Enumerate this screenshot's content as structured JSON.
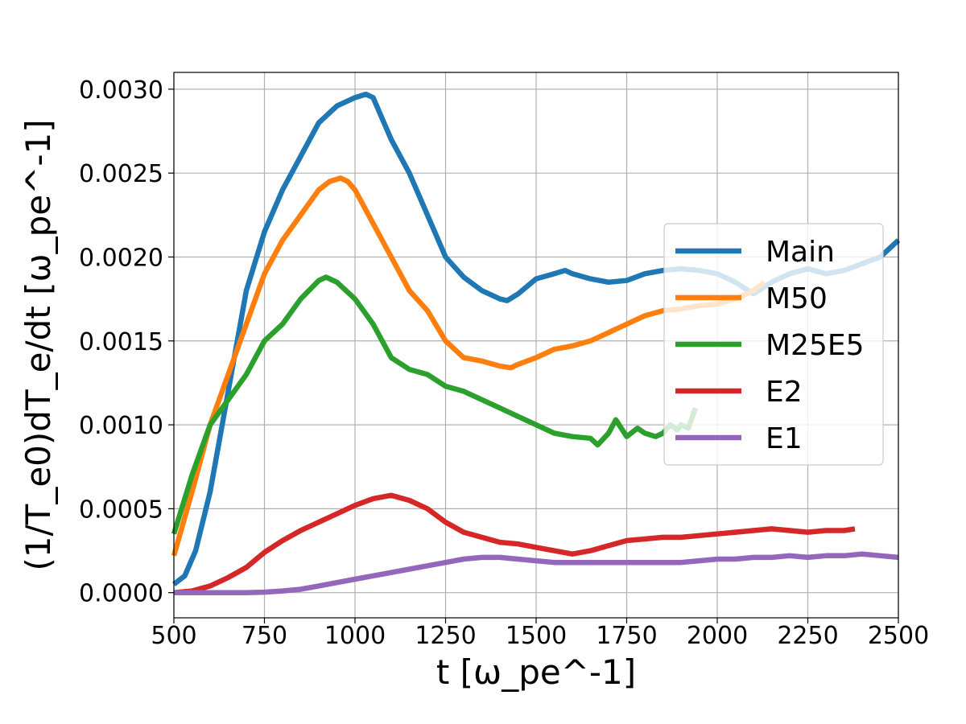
{
  "chart_data": {
    "type": "line",
    "title": "",
    "xlabel": "t   [ω_pe^-1]",
    "ylabel": "(1/T_e0)dT_e/dt   [ω_pe^-1]",
    "xlim": [
      500,
      2500
    ],
    "ylim": [
      -0.00015,
      0.0031
    ],
    "xticks": [
      500,
      750,
      1000,
      1250,
      1500,
      1750,
      2000,
      2250,
      2500
    ],
    "xtick_labels": [
      "500",
      "750",
      "1000",
      "1250",
      "1500",
      "1750",
      "2000",
      "2250",
      "2500"
    ],
    "yticks": [
      0,
      0.0005,
      0.001,
      0.0015,
      0.002,
      0.0025,
      0.003
    ],
    "ytick_labels": [
      "0.0000",
      "0.0005",
      "0.0010",
      "0.0015",
      "0.0020",
      "0.0025",
      "0.0030"
    ],
    "grid": true,
    "legend_position": "center-right",
    "series": [
      {
        "name": "Main",
        "color": "#1f77b4",
        "x": [
          500,
          530,
          560,
          600,
          650,
          700,
          750,
          800,
          850,
          900,
          950,
          1000,
          1030,
          1050,
          1080,
          1100,
          1150,
          1200,
          1250,
          1300,
          1350,
          1400,
          1420,
          1450,
          1500,
          1550,
          1580,
          1600,
          1650,
          1700,
          1750,
          1800,
          1850,
          1900,
          1950,
          2000,
          2050,
          2100,
          2150,
          2200,
          2250,
          2300,
          2350,
          2400,
          2450,
          2500
        ],
        "y": [
          5e-05,
          0.0001,
          0.00025,
          0.0006,
          0.0012,
          0.0018,
          0.00215,
          0.0024,
          0.0026,
          0.0028,
          0.0029,
          0.00295,
          0.00297,
          0.00295,
          0.0028,
          0.0027,
          0.0025,
          0.00225,
          0.002,
          0.00188,
          0.0018,
          0.00175,
          0.00174,
          0.00178,
          0.00187,
          0.0019,
          0.00192,
          0.0019,
          0.00187,
          0.00185,
          0.00186,
          0.0019,
          0.00192,
          0.00193,
          0.00192,
          0.0019,
          0.00185,
          0.00178,
          0.00185,
          0.0019,
          0.00193,
          0.0019,
          0.00192,
          0.00196,
          0.002,
          0.0021
        ]
      },
      {
        "name": "M50",
        "color": "#ff7f0e",
        "x": [
          500,
          550,
          600,
          650,
          700,
          750,
          800,
          850,
          900,
          930,
          960,
          980,
          1000,
          1050,
          1100,
          1150,
          1200,
          1250,
          1300,
          1350,
          1400,
          1430,
          1450,
          1500,
          1550,
          1600,
          1650,
          1700,
          1750,
          1800,
          1850,
          1900,
          1950,
          2000,
          2050,
          2100,
          2130
        ],
        "y": [
          0.00022,
          0.0006,
          0.001,
          0.0013,
          0.0016,
          0.0019,
          0.0021,
          0.00225,
          0.0024,
          0.00245,
          0.00247,
          0.00245,
          0.0024,
          0.0022,
          0.002,
          0.0018,
          0.00168,
          0.0015,
          0.0014,
          0.00138,
          0.00135,
          0.00134,
          0.00136,
          0.0014,
          0.00145,
          0.00147,
          0.0015,
          0.00155,
          0.0016,
          0.00165,
          0.00168,
          0.00169,
          0.00171,
          0.00172,
          0.00175,
          0.0018,
          0.00185
        ]
      },
      {
        "name": "M25E5",
        "color": "#2ca02c",
        "x": [
          500,
          550,
          600,
          650,
          700,
          750,
          800,
          850,
          900,
          920,
          950,
          1000,
          1050,
          1100,
          1150,
          1200,
          1250,
          1300,
          1350,
          1400,
          1450,
          1500,
          1550,
          1600,
          1650,
          1670,
          1700,
          1720,
          1750,
          1780,
          1800,
          1830,
          1850,
          1870,
          1890,
          1900,
          1920,
          1940
        ],
        "y": [
          0.00035,
          0.0007,
          0.001,
          0.00115,
          0.0013,
          0.0015,
          0.0016,
          0.00175,
          0.00186,
          0.00188,
          0.00185,
          0.00175,
          0.0016,
          0.0014,
          0.00133,
          0.0013,
          0.00123,
          0.0012,
          0.00115,
          0.0011,
          0.00105,
          0.001,
          0.00095,
          0.00093,
          0.00092,
          0.00088,
          0.00095,
          0.00103,
          0.00093,
          0.00098,
          0.00095,
          0.00093,
          0.00095,
          0.001,
          0.00097,
          0.001,
          0.00098,
          0.0011
        ]
      },
      {
        "name": "E2",
        "color": "#d62728",
        "x": [
          500,
          550,
          600,
          650,
          700,
          750,
          800,
          850,
          900,
          950,
          1000,
          1050,
          1100,
          1150,
          1200,
          1250,
          1300,
          1350,
          1400,
          1450,
          1500,
          1550,
          1600,
          1650,
          1700,
          1750,
          1800,
          1850,
          1900,
          1950,
          2000,
          2050,
          2100,
          2150,
          2200,
          2250,
          2300,
          2350,
          2380
        ],
        "y": [
          0,
          1e-05,
          4e-05,
          9e-05,
          0.00015,
          0.00024,
          0.00031,
          0.00037,
          0.00042,
          0.00047,
          0.00052,
          0.00056,
          0.00058,
          0.00055,
          0.0005,
          0.00042,
          0.00036,
          0.00033,
          0.0003,
          0.00029,
          0.00027,
          0.00025,
          0.00023,
          0.00025,
          0.00028,
          0.00031,
          0.00032,
          0.00033,
          0.00033,
          0.00034,
          0.00035,
          0.00036,
          0.00037,
          0.00038,
          0.00037,
          0.00036,
          0.00037,
          0.00037,
          0.00038
        ]
      },
      {
        "name": "E1",
        "color": "#9467bd",
        "x": [
          500,
          600,
          700,
          750,
          800,
          850,
          900,
          950,
          1000,
          1050,
          1100,
          1150,
          1200,
          1250,
          1300,
          1350,
          1400,
          1450,
          1500,
          1550,
          1600,
          1650,
          1700,
          1750,
          1800,
          1850,
          1900,
          1950,
          2000,
          2050,
          2100,
          2150,
          2200,
          2250,
          2300,
          2350,
          2400,
          2450,
          2500
        ],
        "y": [
          0,
          0,
          0,
          3e-06,
          1e-05,
          2e-05,
          4e-05,
          6e-05,
          8e-05,
          0.0001,
          0.00012,
          0.00014,
          0.00016,
          0.00018,
          0.0002,
          0.00021,
          0.00021,
          0.0002,
          0.00019,
          0.00018,
          0.00018,
          0.00018,
          0.00018,
          0.00018,
          0.00018,
          0.00018,
          0.00018,
          0.00019,
          0.0002,
          0.0002,
          0.00021,
          0.00021,
          0.00022,
          0.00021,
          0.00022,
          0.00022,
          0.00023,
          0.00022,
          0.00021
        ]
      }
    ]
  }
}
